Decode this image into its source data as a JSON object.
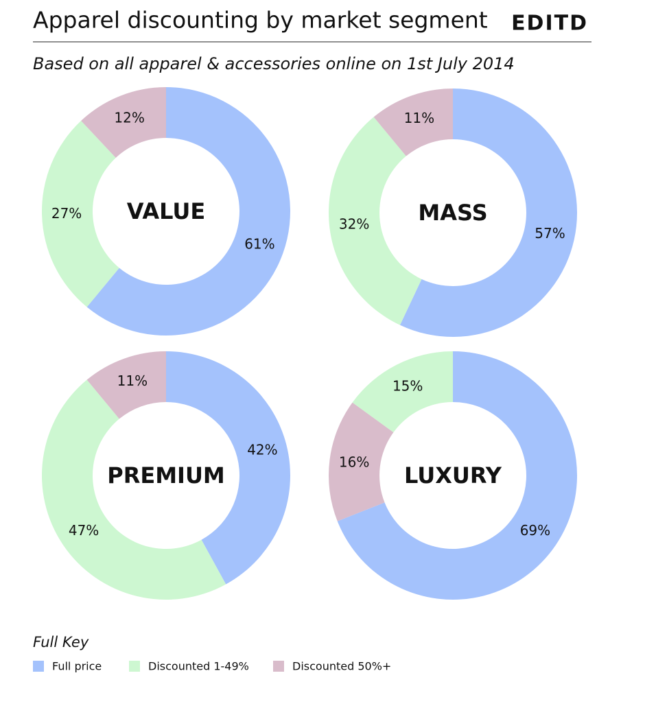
{
  "title": "Apparel discounting by market segment",
  "logo": "EDITD",
  "subtitle": "Based on all apparel & accessories online on 1st July 2014",
  "chart_data": [
    {
      "type": "donut",
      "title": "VALUE",
      "values": [
        61,
        27,
        12
      ],
      "value_labels": [
        "61%",
        "27%",
        "12%"
      ],
      "colors": [
        "#a4c2fc",
        "#cdf7d1",
        "#d9bccb"
      ]
    },
    {
      "type": "donut",
      "title": "MASS",
      "values": [
        57,
        32,
        11
      ],
      "value_labels": [
        "57%",
        "32%",
        "11%"
      ],
      "colors": [
        "#a4c2fc",
        "#cdf7d1",
        "#d9bccb"
      ]
    },
    {
      "type": "donut",
      "title": "PREMIUM",
      "values": [
        42,
        47,
        11
      ],
      "value_labels": [
        "42%",
        "47%",
        "11%"
      ],
      "colors": [
        "#a4c2fc",
        "#cdf7d1",
        "#d9bccb"
      ]
    },
    {
      "type": "donut",
      "title": "LUXURY",
      "values": [
        69,
        16,
        15
      ],
      "value_labels": [
        "69%",
        "16%",
        "15%"
      ],
      "colors": [
        "#a4c2fc",
        "#d9bccb",
        "#cdf7d1"
      ]
    }
  ],
  "legend": {
    "title": "Full Key",
    "categories": [
      "Full price",
      "Discounted 1-49%",
      "Discounted 50%+"
    ],
    "colors": [
      "#a4c2fc",
      "#cdf7d1",
      "#d9bccb"
    ]
  }
}
